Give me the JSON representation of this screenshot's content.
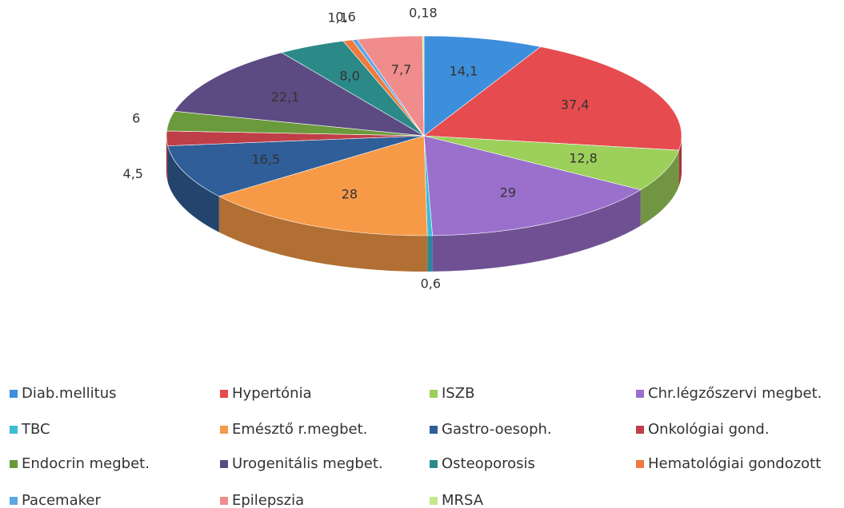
{
  "chart_data": {
    "type": "pie",
    "categories": [
      "Diab.mellitus",
      "Hypertónia",
      "ISZB",
      "Chr.légzőszervi megbet.",
      "TBC",
      "Emésztő r.megbet.",
      "Gastro-oesoph.",
      "Onkológiai gond.",
      "Endocrin megbet.",
      "Urogenitális megbet.",
      "Osteoporosis",
      "Hematológiai gondozott",
      "Pacemaker",
      "Epilepszia",
      "MRSA"
    ],
    "values": [
      14.1,
      37.4,
      12.8,
      29,
      0.6,
      28,
      16.5,
      4.5,
      6,
      22.1,
      8.0,
      1.1,
      0.6,
      7.7,
      0.18
    ],
    "value_labels": [
      "14,1",
      "37,4",
      "12,8",
      "29",
      "0,6",
      "28",
      "16,5",
      "4,5",
      "6",
      "22,1",
      "8,0",
      "1,1",
      "0,6",
      "7,7",
      "0,18"
    ],
    "colors": [
      "#3d8fdb",
      "#e64b4f",
      "#9dcf5b",
      "#9a70cc",
      "#3bbdd4",
      "#f79a47",
      "#2f5e98",
      "#bf3f48",
      "#6a9a3b",
      "#5b4b82",
      "#2b8a87",
      "#ef7a3b",
      "#5ca7e6",
      "#f08c8c",
      "#c5e78c"
    ],
    "legend": "bottom"
  }
}
